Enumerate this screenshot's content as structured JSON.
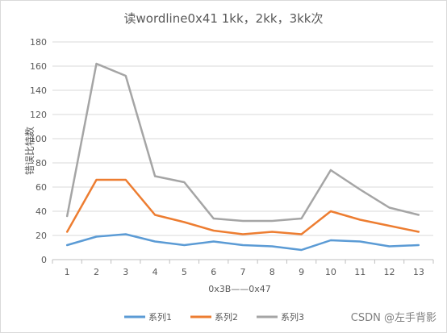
{
  "chart_data": {
    "type": "line",
    "title": "读wordline0x41 1kk，2kk，3kk次",
    "xlabel": "0x3B——0x47",
    "ylabel": "错误比特数",
    "categories": [
      "1",
      "2",
      "3",
      "4",
      "5",
      "6",
      "7",
      "8",
      "9",
      "10",
      "11",
      "12",
      "13"
    ],
    "ylim": [
      0,
      180
    ],
    "yticks": [
      0,
      20,
      40,
      60,
      80,
      100,
      120,
      140,
      160,
      180
    ],
    "grid": true,
    "legend_position": "bottom",
    "series": [
      {
        "name": "系列1",
        "color": "#5b9bd5",
        "values": [
          12,
          19,
          21,
          15,
          12,
          15,
          12,
          11,
          8,
          16,
          15,
          11,
          12
        ]
      },
      {
        "name": "系列2",
        "color": "#ed7d31",
        "values": [
          23,
          66,
          66,
          37,
          31,
          24,
          21,
          23,
          21,
          40,
          33,
          28,
          23
        ]
      },
      {
        "name": "系列3",
        "color": "#a5a5a5",
        "values": [
          36,
          162,
          152,
          69,
          64,
          34,
          32,
          32,
          34,
          74,
          58,
          43,
          37
        ]
      }
    ]
  },
  "watermark": "CSDN @左手背影"
}
